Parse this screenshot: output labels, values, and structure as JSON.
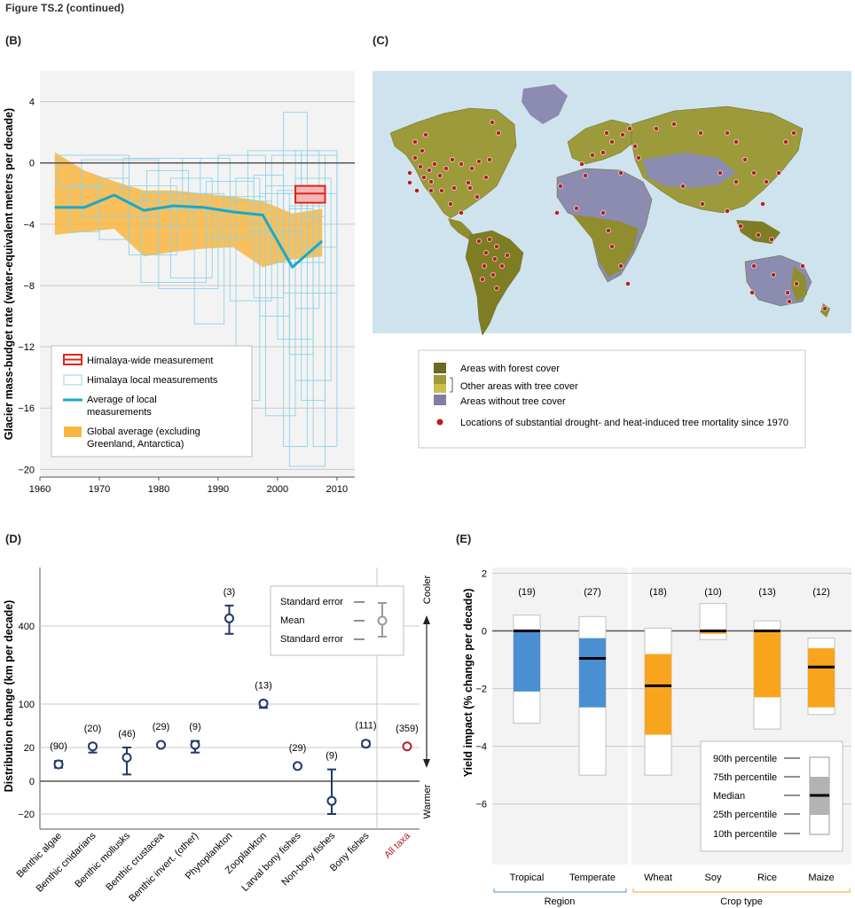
{
  "figure_title": "Figure TS.2 (continued)",
  "colors": {
    "navy": "#1f3a68",
    "red_accent": "#b22222",
    "cyan": "#18a9c9",
    "orange_band": "#f8b540",
    "blue_bar": "#4a8fd1",
    "orange_bar": "#f8a51d",
    "grid": "#c9c9c9",
    "zero": "#555555",
    "forest": "#6b6a1e",
    "tree": "#c7c04b",
    "no_tree": "#7f7ea3",
    "ocean": "#cfe3ef"
  },
  "panels": {
    "b": {
      "label": "(B)",
      "ylabel": "Glacier mass-budget rate (water-equivalent meters per decade)",
      "legend": {
        "himalaya_wide": "Himalaya-wide measurement",
        "himalaya_local": "Himalaya local measurements",
        "average_local_1": "Average of local",
        "average_local_2": "measurements",
        "global_avg_1": "Global average (excluding",
        "global_avg_2": "Greenland, Antarctica)"
      }
    },
    "c": {
      "label": "(C)",
      "legend": {
        "forest": "Areas with forest cover",
        "tree": "Other areas with tree cover",
        "no_tree": "Areas without tree cover",
        "mortality": "Locations of substantial drought- and heat-induced tree mortality since 1970"
      }
    },
    "d": {
      "label": "(D)",
      "ylabel": "Distribution change (km per decade)",
      "cooler": "Cooler",
      "warmer": "Warmer",
      "legend": {
        "se_top": "Standard error",
        "mean": "Mean",
        "se_bottom": "Standard error"
      }
    },
    "e": {
      "label": "(E)",
      "ylabel": "Yield impact (% change per decade)",
      "group_region": "Region",
      "group_crop": "Crop type",
      "legend": {
        "p90": "90th percentile",
        "p75": "75th percentile",
        "median": "Median",
        "p25": "25th percentile",
        "p10": "10th percentile"
      }
    }
  },
  "chart_data": [
    {
      "panel": "B",
      "type": "area",
      "xlabel": "",
      "ylabel": "Glacier mass-budget rate (water-equivalent meters per decade)",
      "xlim": [
        1960,
        2013
      ],
      "ylim": [
        -20.5,
        6
      ],
      "xticks": [
        1960,
        1970,
        1980,
        1990,
        2000,
        2010
      ],
      "yticks": [
        4,
        0,
        -4,
        -8,
        -12,
        -16,
        -20
      ],
      "grid": "horizontal",
      "legend_position": "bottom-left",
      "global_band": {
        "x": [
          1962.5,
          1967.5,
          1972.5,
          1977.5,
          1982.5,
          1987.5,
          1992.5,
          1997.5,
          2002.5,
          2007.5
        ],
        "upper": [
          0.7,
          -0.5,
          -1.2,
          -1.8,
          -1.8,
          -2.0,
          -2.2,
          -2.5,
          -3.3,
          -3.0
        ],
        "lower": [
          -4.7,
          -4.5,
          -4.3,
          -6.1,
          -5.8,
          -5.6,
          -5.5,
          -6.8,
          -6.3,
          -6.1
        ]
      },
      "local_average": {
        "x": [
          1962.5,
          1967.5,
          1972.5,
          1977.5,
          1982.5,
          1987.5,
          1992.5,
          1997.5,
          2002.5,
          2007.5
        ],
        "y": [
          -2.9,
          -2.9,
          -2.1,
          -3.1,
          -2.8,
          -2.9,
          -3.2,
          -3.4,
          -6.8,
          -5.1
        ]
      },
      "himalaya_wide": {
        "x0": 2003,
        "x1": 2008,
        "y0": -1.5,
        "y1": -2.6,
        "mid": -2.0
      },
      "local_boxes": [
        [
          1963,
          1975,
          0.5,
          -1.6
        ],
        [
          1965,
          1970,
          -1.5,
          -4.5
        ],
        [
          1967,
          1980,
          0.2,
          -3.5
        ],
        [
          1970,
          1975,
          -1.0,
          -5.0
        ],
        [
          1974,
          1987,
          0.3,
          -2.5
        ],
        [
          1975,
          1983,
          -1.5,
          -6.0
        ],
        [
          1977,
          1988,
          -2.0,
          -7.8
        ],
        [
          1978,
          1985,
          -0.5,
          -4.2
        ],
        [
          1980,
          1990,
          -3.0,
          -8.2
        ],
        [
          1982,
          1989,
          -1.0,
          -7.5
        ],
        [
          1984,
          1992,
          0.3,
          -3.0
        ],
        [
          1986,
          1991,
          -2.0,
          -10.5
        ],
        [
          1988,
          1996,
          -1.2,
          -4.8
        ],
        [
          1990,
          1998,
          0.5,
          -2.2
        ],
        [
          1992,
          1999,
          -2.5,
          -9.0
        ],
        [
          1993,
          1997,
          -1.0,
          -15.5
        ],
        [
          1995,
          2004,
          0.8,
          -4.5
        ],
        [
          1997,
          2002,
          -2.0,
          -10.0
        ],
        [
          1998,
          2003,
          -1.5,
          -16.5
        ],
        [
          1999,
          2008,
          0.5,
          -6.5
        ],
        [
          2000,
          2006,
          -1.8,
          -11.5
        ],
        [
          2001,
          2005,
          3.3,
          -18.5
        ],
        [
          2001,
          2008,
          -2.0,
          -8.5
        ],
        [
          2002,
          2006,
          -3.0,
          -12.5
        ],
        [
          2002,
          2008,
          -2.8,
          -19.8
        ],
        [
          2003,
          2007,
          0.8,
          -9.5
        ],
        [
          2003,
          2009,
          -1.0,
          -14.2
        ],
        [
          2004,
          2010,
          0.5,
          -5.5
        ],
        [
          2004,
          2008,
          -3.5,
          -15.5
        ],
        [
          2005,
          2010,
          0.8,
          -8.5
        ],
        [
          2006,
          2010,
          -2.0,
          -18.5
        ],
        [
          1996,
          2001,
          -0.8,
          -8.8
        ]
      ]
    },
    {
      "panel": "D",
      "type": "scatter",
      "xlabel": "",
      "ylabel": "Distribution change (km per decade)",
      "yscale": "nonlinear",
      "yticks": [
        -20,
        0,
        20,
        100,
        400
      ],
      "ytick_labels": [
        "-20",
        "0",
        "20",
        "100",
        "400"
      ],
      "grid": "horizontal",
      "legend_position": "top-right",
      "categories": [
        "Benthic algae",
        "Benthic cnidarians",
        "Benthic mollusks",
        "Benthic crustacea",
        "Benthic invert. (other)",
        "Phytoplankton",
        "Zooplankton",
        "Larval bony fishes",
        "Non-bony fishes",
        "Bony fishes",
        "All taxa"
      ],
      "n": [
        "(90)",
        "(20)",
        "(46)",
        "(29)",
        "(9)",
        "(3)",
        "(13)",
        "(29)",
        "(9)",
        "(111)",
        "(359)"
      ],
      "mean": [
        10,
        22,
        14,
        25,
        25,
        430,
        102,
        9,
        -12,
        27,
        22
      ],
      "se_low": [
        8,
        17,
        4,
        22,
        17,
        370,
        93,
        8,
        -20,
        22,
        20
      ],
      "se_high": [
        12,
        26,
        20,
        28,
        32,
        480,
        111,
        10,
        7,
        32,
        24
      ]
    },
    {
      "panel": "E",
      "type": "bar",
      "xlabel": "",
      "ylabel": "Yield impact (% change per decade)",
      "ylim": [
        -8.1,
        2.2
      ],
      "yticks": [
        2,
        0,
        -2,
        -4,
        -6
      ],
      "grid": "horizontal",
      "legend_position": "bottom-right",
      "categories": [
        "Tropical",
        "Temperate",
        "Wheat",
        "Soy",
        "Rice",
        "Maize"
      ],
      "groups": [
        {
          "name": "Region",
          "members": [
            "Tropical",
            "Temperate"
          ]
        },
        {
          "name": "Crop type",
          "members": [
            "Wheat",
            "Soy",
            "Rice",
            "Maize"
          ]
        }
      ],
      "n": [
        "(19)",
        "(27)",
        "(18)",
        "(10)",
        "(13)",
        "(12)"
      ],
      "p90": [
        0.55,
        0.5,
        0.1,
        0.95,
        0.35,
        -0.25
      ],
      "p75": [
        0,
        -0.25,
        -0.8,
        0,
        0,
        -0.6
      ],
      "median": [
        0,
        -0.95,
        -1.9,
        0,
        0,
        -1.25
      ],
      "p25": [
        -2.1,
        -2.65,
        -3.6,
        -0.1,
        -2.3,
        -2.65
      ],
      "p10": [
        -3.2,
        -5.0,
        -5.0,
        -0.3,
        -3.4,
        -2.9
      ]
    }
  ]
}
